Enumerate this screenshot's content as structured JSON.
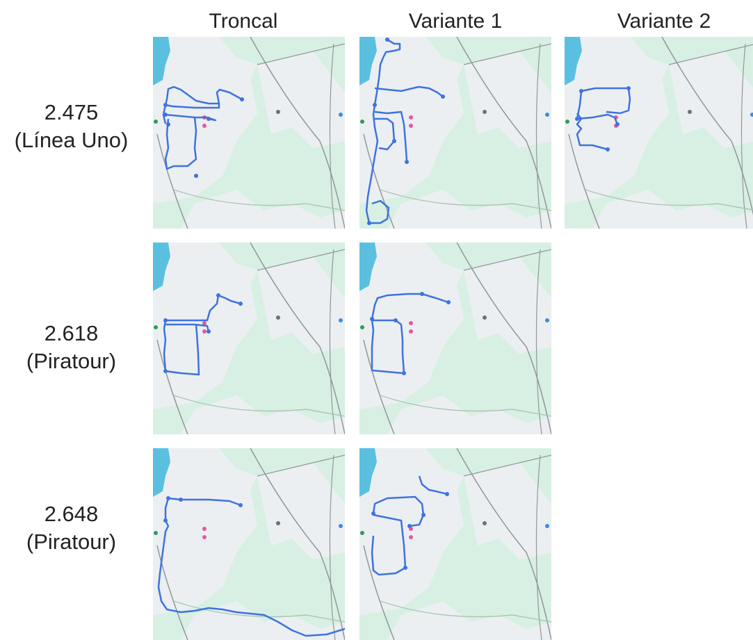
{
  "columns": [
    "Troncal",
    "Variante 1",
    "Variante 2"
  ],
  "rows": [
    {
      "code": "2.475",
      "operator": "(Línea Uno)",
      "maps": [
        "troncal",
        "variante1",
        "variante2"
      ]
    },
    {
      "code": "2.618",
      "operator": "(Piratour)",
      "maps": [
        "troncal",
        "variante1"
      ]
    },
    {
      "code": "2.648",
      "operator": "(Piratour)",
      "maps": [
        "troncal",
        "variante1"
      ]
    }
  ],
  "colors": {
    "route": "#3d72e0",
    "land": "#d8f0e3",
    "urban": "#eceff1",
    "water": "#5bc0e0",
    "road": "#8f969b"
  }
}
